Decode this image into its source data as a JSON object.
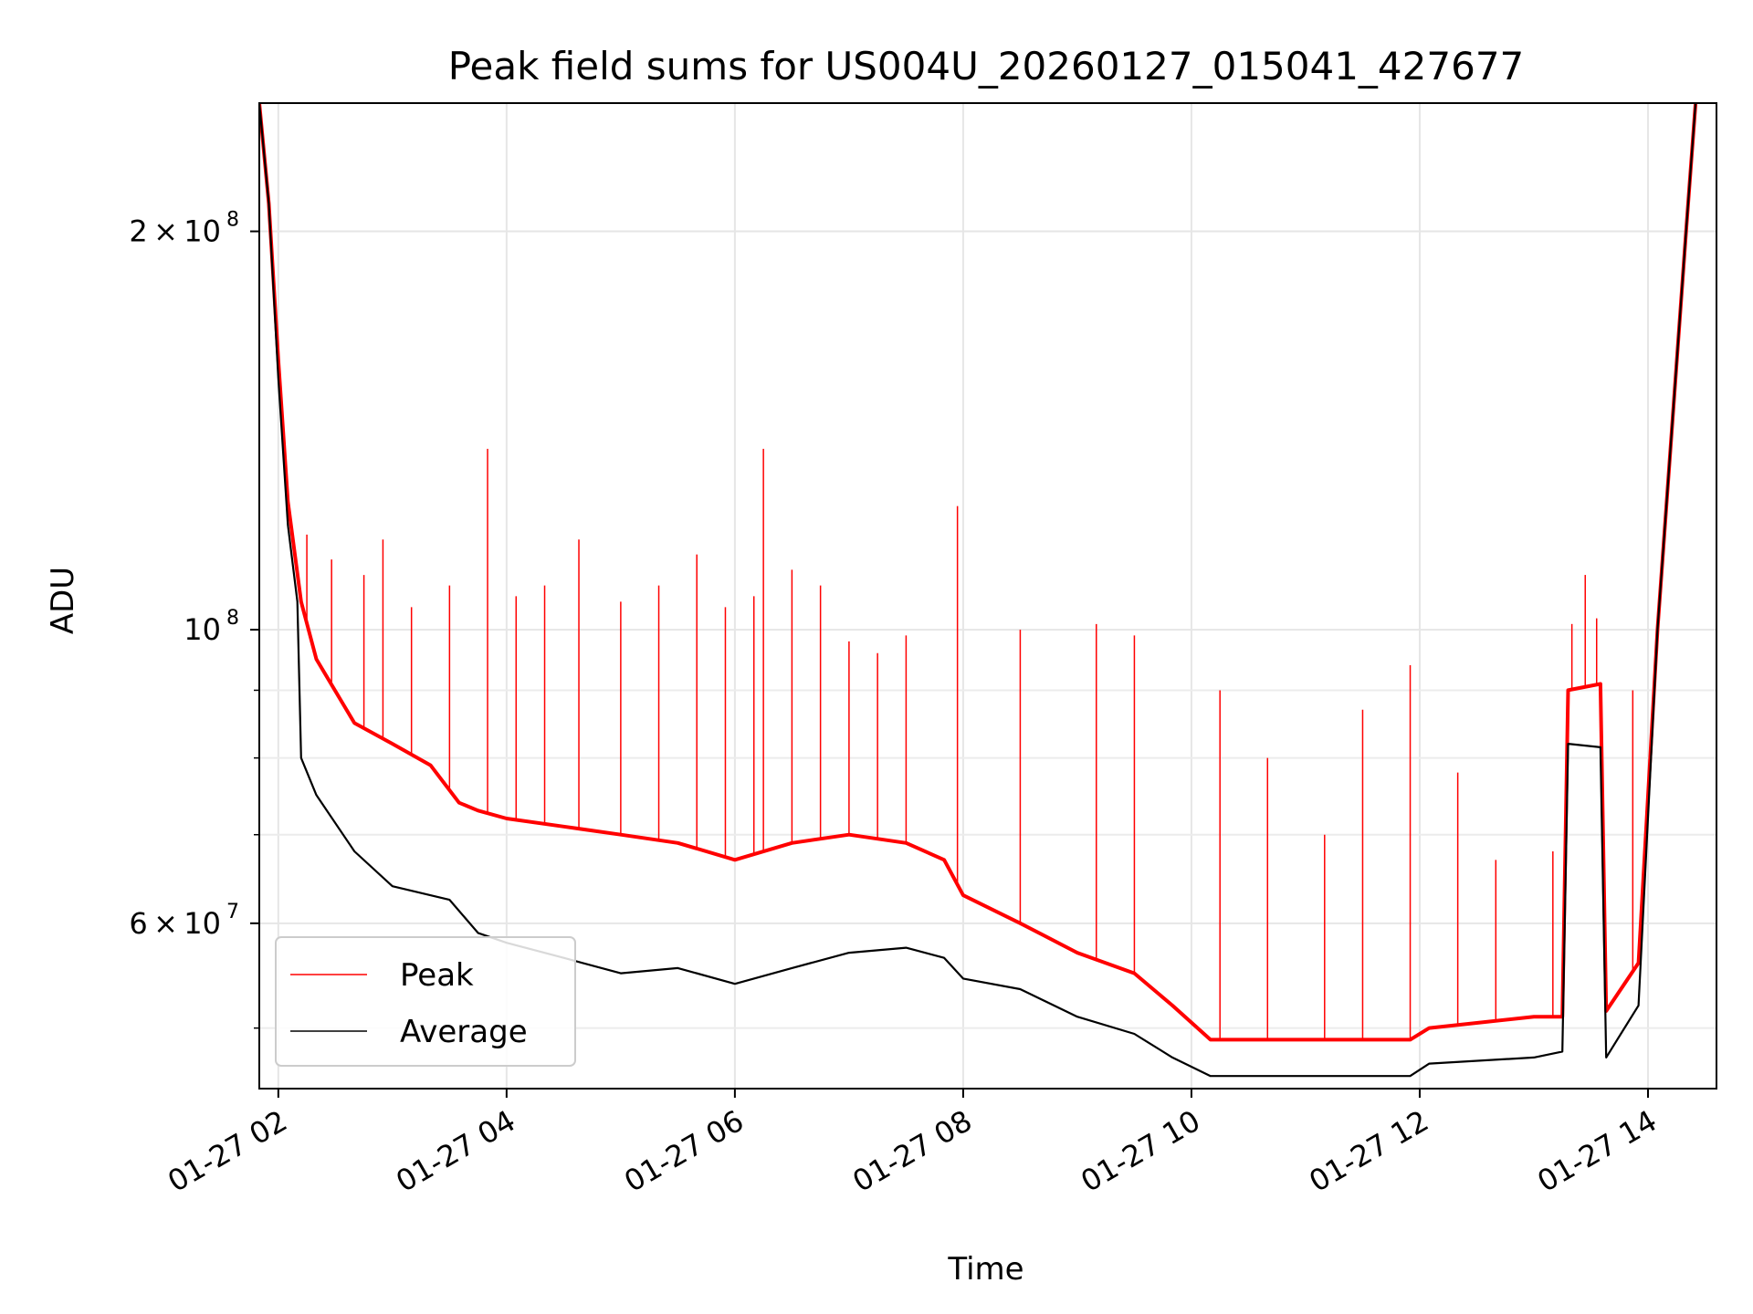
{
  "chart_data": {
    "type": "line",
    "title": "Peak field sums for US004U_20260127_015041_427677",
    "xlabel": "Time",
    "ylabel": "ADU",
    "x_range": [
      "2026-01-27 01:50",
      "2026-01-27 14:36"
    ],
    "yscale": "log",
    "ylim": [
      45000000,
      250000000
    ],
    "grid": true,
    "legend_position": "lower-left",
    "x_ticks": [
      {
        "t": "2026-01-27 02:00",
        "label": "01-27 02"
      },
      {
        "t": "2026-01-27 04:00",
        "label": "01-27 04"
      },
      {
        "t": "2026-01-27 06:00",
        "label": "01-27 06"
      },
      {
        "t": "2026-01-27 08:00",
        "label": "01-27 08"
      },
      {
        "t": "2026-01-27 10:00",
        "label": "01-27 10"
      },
      {
        "t": "2026-01-27 12:00",
        "label": "01-27 12"
      },
      {
        "t": "2026-01-27 14:00",
        "label": "01-27 14"
      }
    ],
    "y_ticks_major": [
      {
        "value": 60000000,
        "base": "6",
        "exp": "7"
      },
      {
        "value": 100000000,
        "base": "",
        "exp": "8"
      },
      {
        "value": 200000000,
        "base": "2",
        "exp": "8"
      }
    ],
    "y_ticks_minor": [
      50000000,
      70000000,
      80000000,
      90000000
    ],
    "series": [
      {
        "name": "Peak",
        "color": "#ff0000",
        "x": [
          "2026-01-27 01:50",
          "2026-01-27 01:55",
          "2026-01-27 02:00",
          "2026-01-27 02:05",
          "2026-01-27 02:12",
          "2026-01-27 02:20",
          "2026-01-27 02:40",
          "2026-01-27 03:00",
          "2026-01-27 03:20",
          "2026-01-27 03:35",
          "2026-01-27 03:45",
          "2026-01-27 04:00",
          "2026-01-27 04:30",
          "2026-01-27 05:00",
          "2026-01-27 05:30",
          "2026-01-27 06:00",
          "2026-01-27 06:30",
          "2026-01-27 07:00",
          "2026-01-27 07:30",
          "2026-01-27 07:50",
          "2026-01-27 08:00",
          "2026-01-27 08:30",
          "2026-01-27 09:00",
          "2026-01-27 09:30",
          "2026-01-27 09:50",
          "2026-01-27 10:10",
          "2026-01-27 11:00",
          "2026-01-27 11:55",
          "2026-01-27 12:05",
          "2026-01-27 13:00",
          "2026-01-27 13:15",
          "2026-01-27 13:18",
          "2026-01-27 13:35",
          "2026-01-27 13:38",
          "2026-01-27 13:55",
          "2026-01-27 14:05",
          "2026-01-27 14:20",
          "2026-01-27 14:25"
        ],
        "values": [
          250000000,
          210000000,
          160000000,
          125000000,
          105000000,
          95000000,
          85000000,
          82000000,
          79000000,
          74000000,
          73000000,
          72000000,
          71000000,
          70000000,
          69000000,
          67000000,
          69000000,
          70000000,
          69000000,
          67000000,
          63000000,
          60000000,
          57000000,
          55000000,
          52000000,
          49000000,
          49000000,
          49000000,
          50000000,
          51000000,
          51000000,
          90000000,
          91000000,
          51500000,
          56000000,
          100000000,
          200000000,
          250000000
        ],
        "spikes": [
          {
            "t": "2026-01-27 02:15",
            "v": 118000000
          },
          {
            "t": "2026-01-27 02:28",
            "v": 113000000
          },
          {
            "t": "2026-01-27 02:45",
            "v": 110000000
          },
          {
            "t": "2026-01-27 02:55",
            "v": 117000000
          },
          {
            "t": "2026-01-27 03:10",
            "v": 104000000
          },
          {
            "t": "2026-01-27 03:30",
            "v": 108000000
          },
          {
            "t": "2026-01-27 03:50",
            "v": 137000000
          },
          {
            "t": "2026-01-27 04:05",
            "v": 106000000
          },
          {
            "t": "2026-01-27 04:20",
            "v": 108000000
          },
          {
            "t": "2026-01-27 04:38",
            "v": 117000000
          },
          {
            "t": "2026-01-27 05:00",
            "v": 105000000
          },
          {
            "t": "2026-01-27 05:20",
            "v": 108000000
          },
          {
            "t": "2026-01-27 05:40",
            "v": 114000000
          },
          {
            "t": "2026-01-27 05:55",
            "v": 104000000
          },
          {
            "t": "2026-01-27 06:10",
            "v": 106000000
          },
          {
            "t": "2026-01-27 06:15",
            "v": 137000000
          },
          {
            "t": "2026-01-27 06:30",
            "v": 111000000
          },
          {
            "t": "2026-01-27 06:45",
            "v": 108000000
          },
          {
            "t": "2026-01-27 07:00",
            "v": 98000000
          },
          {
            "t": "2026-01-27 07:15",
            "v": 96000000
          },
          {
            "t": "2026-01-27 07:30",
            "v": 99000000
          },
          {
            "t": "2026-01-27 07:57",
            "v": 124000000
          },
          {
            "t": "2026-01-27 08:30",
            "v": 100000000
          },
          {
            "t": "2026-01-27 09:10",
            "v": 101000000
          },
          {
            "t": "2026-01-27 09:30",
            "v": 99000000
          },
          {
            "t": "2026-01-27 10:15",
            "v": 90000000
          },
          {
            "t": "2026-01-27 10:40",
            "v": 80000000
          },
          {
            "t": "2026-01-27 11:10",
            "v": 70000000
          },
          {
            "t": "2026-01-27 11:30",
            "v": 87000000
          },
          {
            "t": "2026-01-27 11:55",
            "v": 94000000
          },
          {
            "t": "2026-01-27 12:20",
            "v": 78000000
          },
          {
            "t": "2026-01-27 12:40",
            "v": 67000000
          },
          {
            "t": "2026-01-27 13:10",
            "v": 68000000
          },
          {
            "t": "2026-01-27 13:20",
            "v": 101000000
          },
          {
            "t": "2026-01-27 13:27",
            "v": 110000000
          },
          {
            "t": "2026-01-27 13:33",
            "v": 102000000
          },
          {
            "t": "2026-01-27 13:52",
            "v": 90000000
          }
        ]
      },
      {
        "name": "Average",
        "color": "#000000",
        "x": [
          "2026-01-27 01:50",
          "2026-01-27 01:55",
          "2026-01-27 02:00",
          "2026-01-27 02:05",
          "2026-01-27 02:10",
          "2026-01-27 02:12",
          "2026-01-27 02:20",
          "2026-01-27 02:40",
          "2026-01-27 03:00",
          "2026-01-27 03:30",
          "2026-01-27 03:45",
          "2026-01-27 04:00",
          "2026-01-27 04:30",
          "2026-01-27 05:00",
          "2026-01-27 05:30",
          "2026-01-27 06:00",
          "2026-01-27 06:30",
          "2026-01-27 07:00",
          "2026-01-27 07:30",
          "2026-01-27 07:50",
          "2026-01-27 08:00",
          "2026-01-27 08:30",
          "2026-01-27 09:00",
          "2026-01-27 09:30",
          "2026-01-27 09:50",
          "2026-01-27 10:10",
          "2026-01-27 11:00",
          "2026-01-27 11:55",
          "2026-01-27 12:05",
          "2026-01-27 13:00",
          "2026-01-27 13:15",
          "2026-01-27 13:18",
          "2026-01-27 13:35",
          "2026-01-27 13:38",
          "2026-01-27 13:55",
          "2026-01-27 14:05",
          "2026-01-27 14:20",
          "2026-01-27 14:25"
        ],
        "values": [
          250000000,
          210000000,
          155000000,
          120000000,
          105000000,
          80000000,
          75000000,
          68000000,
          64000000,
          62500000,
          59000000,
          58000000,
          56500000,
          55000000,
          55500000,
          54000000,
          55500000,
          57000000,
          57500000,
          56500000,
          54500000,
          53500000,
          51000000,
          49500000,
          47500000,
          46000000,
          46000000,
          46000000,
          47000000,
          47500000,
          48000000,
          82000000,
          81500000,
          47500000,
          52000000,
          100000000,
          200000000,
          250000000
        ]
      }
    ]
  }
}
